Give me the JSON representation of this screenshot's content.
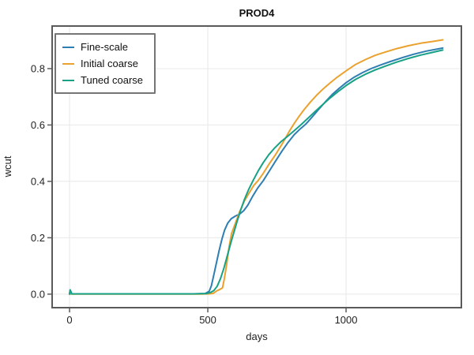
{
  "chart_data": {
    "type": "line",
    "title": "PROD4",
    "xlabel": "days",
    "ylabel": "wcut",
    "xlim": [
      -63,
      1417
    ],
    "ylim": [
      -0.048,
      0.951
    ],
    "grid": true,
    "legend_position": "top-left",
    "frame_color": "#5a5a5a",
    "grid_color": "#e8e8e8",
    "xticks": [
      {
        "v": 0,
        "label": "0"
      },
      {
        "v": 500,
        "label": "500"
      },
      {
        "v": 1000,
        "label": "1000"
      }
    ],
    "yticks": [
      {
        "v": 0.0,
        "label": "0.0"
      },
      {
        "v": 0.2,
        "label": "0.2"
      },
      {
        "v": 0.4,
        "label": "0.4"
      },
      {
        "v": 0.6,
        "label": "0.6"
      },
      {
        "v": 0.8,
        "label": "0.8"
      }
    ],
    "series": [
      {
        "name": "Fine-scale",
        "color": "#2e7eb3",
        "points": [
          [
            0,
            0.0
          ],
          [
            2,
            0.015
          ],
          [
            8,
            0.001
          ],
          [
            60,
            0.001
          ],
          [
            150,
            0.001
          ],
          [
            250,
            0.001
          ],
          [
            350,
            0.001
          ],
          [
            450,
            0.001
          ],
          [
            490,
            0.002
          ],
          [
            505,
            0.01
          ],
          [
            513,
            0.03
          ],
          [
            522,
            0.07
          ],
          [
            531,
            0.11
          ],
          [
            541,
            0.155
          ],
          [
            551,
            0.195
          ],
          [
            561,
            0.228
          ],
          [
            572,
            0.252
          ],
          [
            585,
            0.268
          ],
          [
            600,
            0.277
          ],
          [
            615,
            0.284
          ],
          [
            630,
            0.296
          ],
          [
            645,
            0.316
          ],
          [
            662,
            0.347
          ],
          [
            680,
            0.376
          ],
          [
            700,
            0.402
          ],
          [
            722,
            0.436
          ],
          [
            745,
            0.472
          ],
          [
            768,
            0.507
          ],
          [
            790,
            0.538
          ],
          [
            812,
            0.565
          ],
          [
            833,
            0.585
          ],
          [
            854,
            0.603
          ],
          [
            877,
            0.628
          ],
          [
            900,
            0.654
          ],
          [
            925,
            0.682
          ],
          [
            950,
            0.708
          ],
          [
            975,
            0.73
          ],
          [
            1000,
            0.75
          ],
          [
            1030,
            0.77
          ],
          [
            1060,
            0.786
          ],
          [
            1090,
            0.8
          ],
          [
            1125,
            0.813
          ],
          [
            1160,
            0.825
          ],
          [
            1200,
            0.838
          ],
          [
            1245,
            0.851
          ],
          [
            1290,
            0.862
          ],
          [
            1350,
            0.873
          ]
        ]
      },
      {
        "name": "Initial coarse",
        "color": "#eaa12e",
        "points": [
          [
            0,
            0.0
          ],
          [
            100,
            0.0
          ],
          [
            200,
            0.0
          ],
          [
            300,
            0.0
          ],
          [
            400,
            0.0
          ],
          [
            470,
            0.0
          ],
          [
            505,
            0.001
          ],
          [
            520,
            0.003
          ],
          [
            533,
            0.012
          ],
          [
            544,
            0.017
          ],
          [
            553,
            0.022
          ],
          [
            560,
            0.055
          ],
          [
            568,
            0.105
          ],
          [
            577,
            0.168
          ],
          [
            586,
            0.215
          ],
          [
            600,
            0.252
          ],
          [
            615,
            0.292
          ],
          [
            632,
            0.33
          ],
          [
            650,
            0.36
          ],
          [
            666,
            0.385
          ],
          [
            682,
            0.403
          ],
          [
            700,
            0.428
          ],
          [
            722,
            0.462
          ],
          [
            745,
            0.495
          ],
          [
            770,
            0.535
          ],
          [
            795,
            0.578
          ],
          [
            810,
            0.602
          ],
          [
            828,
            0.628
          ],
          [
            848,
            0.654
          ],
          [
            870,
            0.68
          ],
          [
            893,
            0.705
          ],
          [
            917,
            0.728
          ],
          [
            941,
            0.748
          ],
          [
            966,
            0.768
          ],
          [
            1000,
            0.792
          ],
          [
            1035,
            0.815
          ],
          [
            1070,
            0.832
          ],
          [
            1105,
            0.847
          ],
          [
            1140,
            0.858
          ],
          [
            1180,
            0.87
          ],
          [
            1225,
            0.881
          ],
          [
            1270,
            0.89
          ],
          [
            1310,
            0.896
          ],
          [
            1350,
            0.902
          ]
        ]
      },
      {
        "name": "Tuned coarse",
        "color": "#17a186",
        "points": [
          [
            0,
            0.0
          ],
          [
            2,
            0.015
          ],
          [
            8,
            0.001
          ],
          [
            60,
            0.001
          ],
          [
            150,
            0.001
          ],
          [
            250,
            0.001
          ],
          [
            350,
            0.001
          ],
          [
            450,
            0.001
          ],
          [
            495,
            0.002
          ],
          [
            510,
            0.006
          ],
          [
            522,
            0.013
          ],
          [
            534,
            0.028
          ],
          [
            546,
            0.055
          ],
          [
            558,
            0.092
          ],
          [
            570,
            0.135
          ],
          [
            582,
            0.178
          ],
          [
            592,
            0.212
          ],
          [
            605,
            0.255
          ],
          [
            618,
            0.296
          ],
          [
            632,
            0.335
          ],
          [
            648,
            0.372
          ],
          [
            665,
            0.405
          ],
          [
            682,
            0.437
          ],
          [
            700,
            0.466
          ],
          [
            720,
            0.494
          ],
          [
            742,
            0.519
          ],
          [
            765,
            0.541
          ],
          [
            790,
            0.561
          ],
          [
            815,
            0.582
          ],
          [
            838,
            0.602
          ],
          [
            862,
            0.624
          ],
          [
            888,
            0.648
          ],
          [
            913,
            0.67
          ],
          [
            940,
            0.694
          ],
          [
            970,
            0.718
          ],
          [
            1000,
            0.74
          ],
          [
            1035,
            0.762
          ],
          [
            1070,
            0.78
          ],
          [
            1105,
            0.795
          ],
          [
            1140,
            0.808
          ],
          [
            1180,
            0.822
          ],
          [
            1225,
            0.836
          ],
          [
            1270,
            0.848
          ],
          [
            1310,
            0.857
          ],
          [
            1350,
            0.866
          ]
        ]
      }
    ]
  }
}
